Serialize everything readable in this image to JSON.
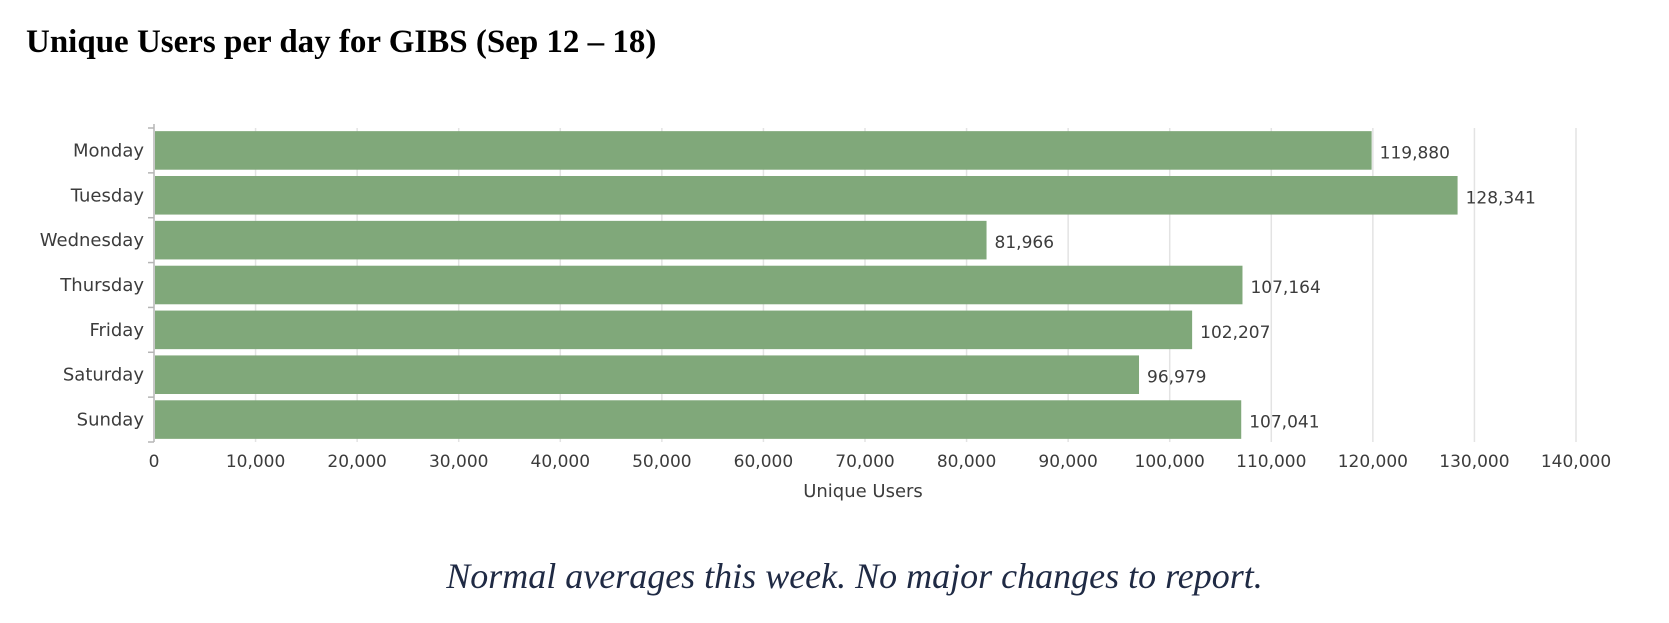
{
  "title": "Unique Users per day for GIBS (Sep 12 – 18)",
  "caption": "Normal averages this week.  No major changes to report.",
  "colors": {
    "bar": "#80a87a",
    "grid": "#e3e3e3",
    "axis": "#b5b5b5"
  },
  "chart_data": {
    "type": "bar",
    "orientation": "horizontal",
    "categories": [
      "Monday",
      "Tuesday",
      "Wednesday",
      "Thursday",
      "Friday",
      "Saturday",
      "Sunday"
    ],
    "values": [
      119880,
      128341,
      81966,
      107164,
      102207,
      96979,
      107041
    ],
    "value_labels": [
      "119,880",
      "128,341",
      "81,966",
      "107,164",
      "102,207",
      "96,979",
      "107,041"
    ],
    "xlabel": "Unique Users",
    "ylabel": "",
    "xlim": [
      0,
      140000
    ],
    "xticks": [
      0,
      10000,
      20000,
      30000,
      40000,
      50000,
      60000,
      70000,
      80000,
      90000,
      100000,
      110000,
      120000,
      130000,
      140000
    ],
    "xtick_labels": [
      "0",
      "10,000",
      "20,000",
      "30,000",
      "40,000",
      "50,000",
      "60,000",
      "70,000",
      "80,000",
      "90,000",
      "100,000",
      "110,000",
      "120,000",
      "130,000",
      "140,000"
    ],
    "grid": true,
    "legend": "none"
  }
}
